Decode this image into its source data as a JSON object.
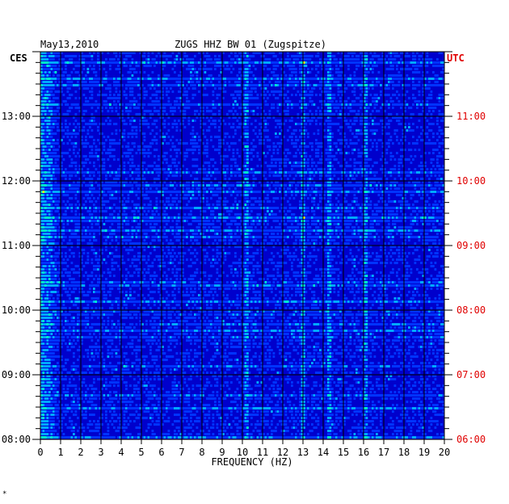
{
  "chart_data": {
    "type": "heatmap",
    "date_label": "May13,2010",
    "title": "ZUGS HHZ BW 01 (Zugspitze)",
    "xlabel": "FREQUENCY (HZ)",
    "x_ticks": [
      "0",
      "1",
      "2",
      "3",
      "4",
      "5",
      "6",
      "7",
      "8",
      "9",
      "10",
      "11",
      "12",
      "13",
      "14",
      "15",
      "16",
      "17",
      "18",
      "19",
      "20"
    ],
    "xlim": [
      0,
      20
    ],
    "left_axis": {
      "name": "CES",
      "ticks": [
        "08:00",
        "09:00",
        "10:00",
        "11:00",
        "12:00",
        "13:00"
      ]
    },
    "right_axis": {
      "name": "UTC",
      "ticks": [
        "06:00",
        "07:00",
        "08:00",
        "09:00",
        "10:00",
        "11:00"
      ]
    },
    "time_range_hours": [
      8.0,
      14.0
    ],
    "time_direction": "later times toward top",
    "grid": true,
    "background_color": "#0000cc",
    "colormap": [
      "#0000aa",
      "#0033ff",
      "#00aaff",
      "#00ffcc",
      "#ffff00",
      "#ff0000"
    ],
    "strong_lines_hz": [
      10.2,
      13.0,
      14.3,
      16.1
    ],
    "footer_mark": "*"
  }
}
